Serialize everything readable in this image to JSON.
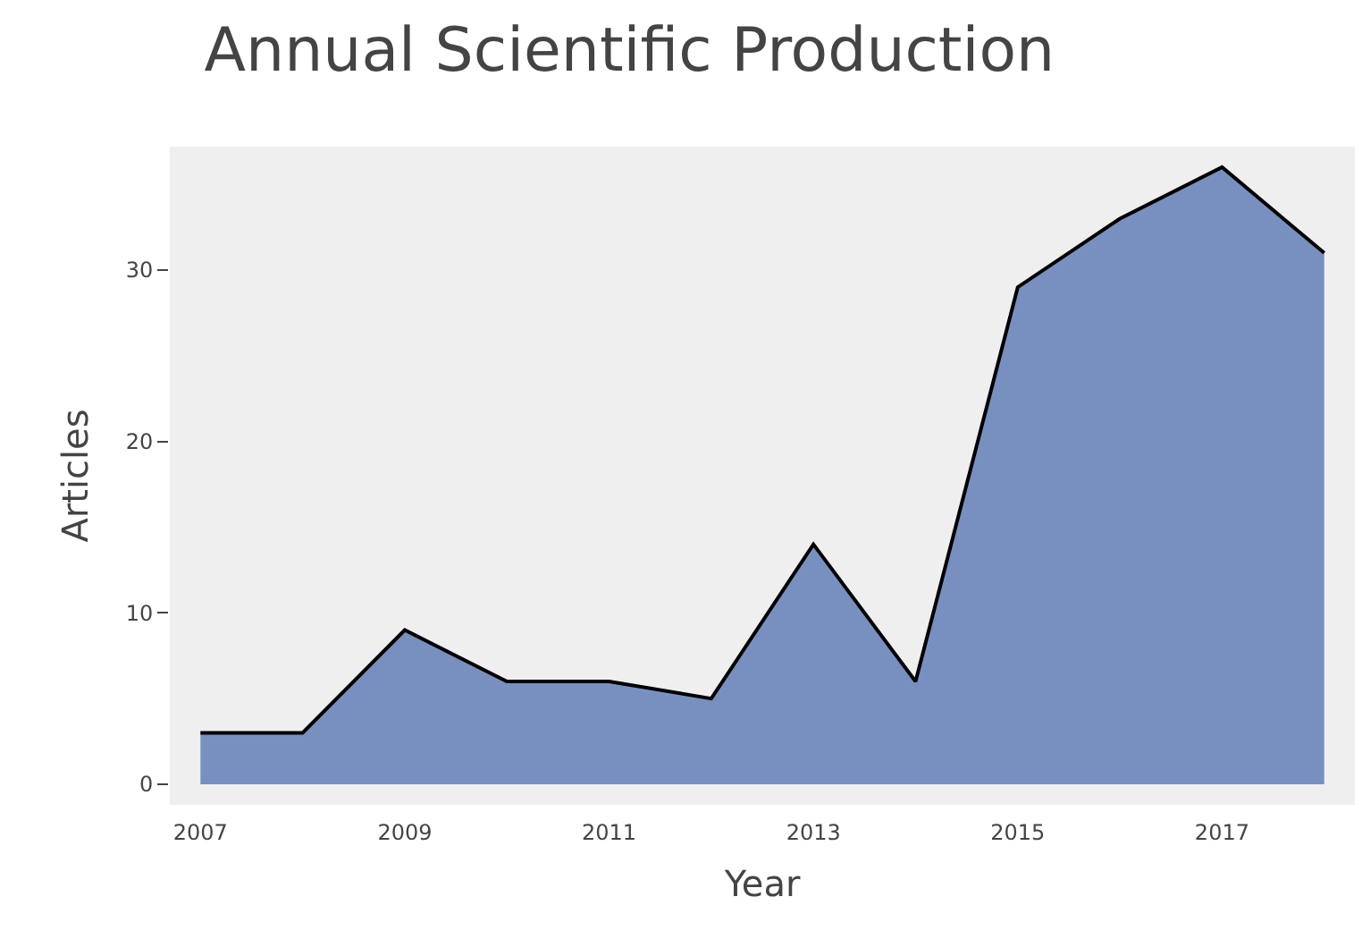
{
  "chart_data": {
    "type": "area",
    "title": "Annual Scientific Production",
    "xlabel": "Year",
    "ylabel": "Articles",
    "x": [
      2007,
      2008,
      2009,
      2010,
      2011,
      2012,
      2013,
      2014,
      2015,
      2016,
      2017,
      2018
    ],
    "series": [
      {
        "color": "#7790bf",
        "values": [
          3,
          3,
          9,
          6,
          6,
          5,
          14,
          6,
          29,
          33,
          36,
          31
        ]
      }
    ],
    "xlim": [
      2006.7,
      2018.3
    ],
    "xticks": [
      2007,
      2009,
      2011,
      2013,
      2015,
      2017
    ],
    "ylim": [
      -1.2,
      37.2
    ],
    "yticks": [
      0,
      10,
      20,
      30
    ],
    "grid": false
  }
}
